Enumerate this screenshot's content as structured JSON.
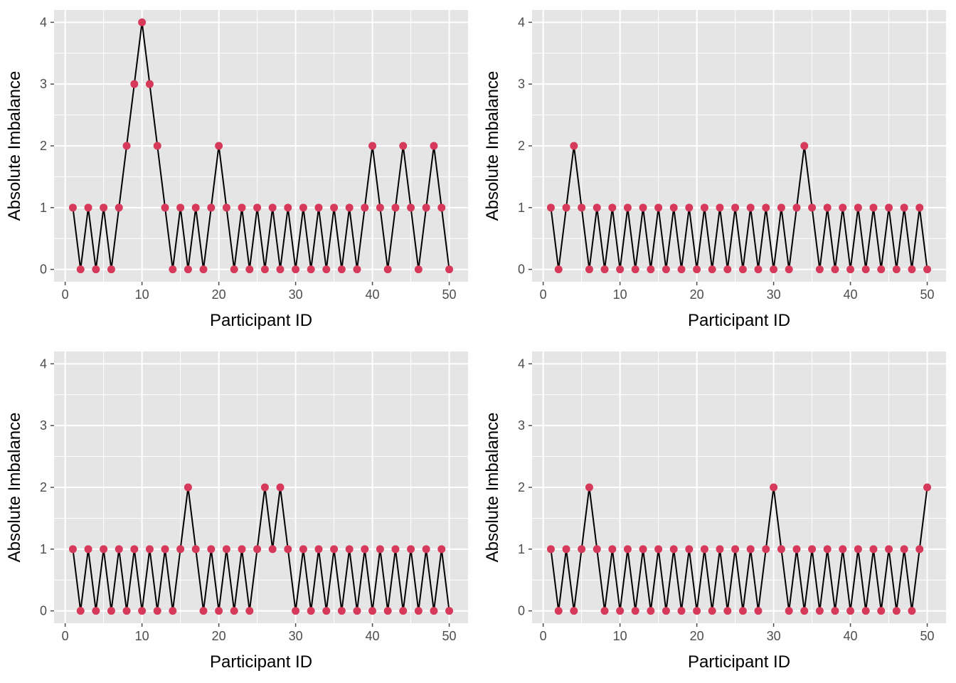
{
  "colors": {
    "panel_background": "#e5e5e5",
    "gridline": "#ffffff",
    "line": "#000000",
    "point": "#d6395a",
    "tick": "#4d4d4d"
  },
  "chart_data": [
    {
      "type": "line",
      "xlabel": "Participant ID",
      "ylabel": "Absolute Imbalance",
      "xlim": [
        1,
        50
      ],
      "ylim": [
        0,
        4
      ],
      "xticks": [
        0,
        10,
        20,
        30,
        40,
        50
      ],
      "yticks": [
        0,
        1,
        2,
        3,
        4
      ],
      "grid": true,
      "x": [
        1,
        2,
        3,
        4,
        5,
        6,
        7,
        8,
        9,
        10,
        11,
        12,
        13,
        14,
        15,
        16,
        17,
        18,
        19,
        20,
        21,
        22,
        23,
        24,
        25,
        26,
        27,
        28,
        29,
        30,
        31,
        32,
        33,
        34,
        35,
        36,
        37,
        38,
        39,
        40,
        41,
        42,
        43,
        44,
        45,
        46,
        47,
        48,
        49,
        50
      ],
      "y": [
        1,
        0,
        1,
        0,
        1,
        0,
        1,
        2,
        3,
        4,
        3,
        2,
        1,
        0,
        1,
        0,
        1,
        0,
        1,
        2,
        1,
        0,
        1,
        0,
        1,
        0,
        1,
        0,
        1,
        0,
        1,
        0,
        1,
        0,
        1,
        0,
        1,
        0,
        1,
        2,
        1,
        0,
        1,
        2,
        1,
        0,
        1,
        2,
        1,
        0
      ]
    },
    {
      "type": "line",
      "xlabel": "Participant ID",
      "ylabel": "Absolute Imbalance",
      "xlim": [
        1,
        50
      ],
      "ylim": [
        0,
        4
      ],
      "xticks": [
        0,
        10,
        20,
        30,
        40,
        50
      ],
      "yticks": [
        0,
        1,
        2,
        3,
        4
      ],
      "grid": true,
      "x": [
        1,
        2,
        3,
        4,
        5,
        6,
        7,
        8,
        9,
        10,
        11,
        12,
        13,
        14,
        15,
        16,
        17,
        18,
        19,
        20,
        21,
        22,
        23,
        24,
        25,
        26,
        27,
        28,
        29,
        30,
        31,
        32,
        33,
        34,
        35,
        36,
        37,
        38,
        39,
        40,
        41,
        42,
        43,
        44,
        45,
        46,
        47,
        48,
        49,
        50
      ],
      "y": [
        1,
        0,
        1,
        2,
        1,
        0,
        1,
        0,
        1,
        0,
        1,
        0,
        1,
        0,
        1,
        0,
        1,
        0,
        1,
        0,
        1,
        0,
        1,
        0,
        1,
        0,
        1,
        0,
        1,
        0,
        1,
        0,
        1,
        2,
        1,
        0,
        1,
        0,
        1,
        0,
        1,
        0,
        1,
        0,
        1,
        0,
        1,
        0,
        1,
        0
      ]
    },
    {
      "type": "line",
      "xlabel": "Participant ID",
      "ylabel": "Absolute Imbalance",
      "xlim": [
        1,
        50
      ],
      "ylim": [
        0,
        4
      ],
      "xticks": [
        0,
        10,
        20,
        30,
        40,
        50
      ],
      "yticks": [
        0,
        1,
        2,
        3,
        4
      ],
      "grid": true,
      "x": [
        1,
        2,
        3,
        4,
        5,
        6,
        7,
        8,
        9,
        10,
        11,
        12,
        13,
        14,
        15,
        16,
        17,
        18,
        19,
        20,
        21,
        22,
        23,
        24,
        25,
        26,
        27,
        28,
        29,
        30,
        31,
        32,
        33,
        34,
        35,
        36,
        37,
        38,
        39,
        40,
        41,
        42,
        43,
        44,
        45,
        46,
        47,
        48,
        49,
        50
      ],
      "y": [
        1,
        0,
        1,
        0,
        1,
        0,
        1,
        0,
        1,
        0,
        1,
        0,
        1,
        0,
        1,
        2,
        1,
        0,
        1,
        0,
        1,
        0,
        1,
        0,
        1,
        2,
        1,
        2,
        1,
        0,
        1,
        0,
        1,
        0,
        1,
        0,
        1,
        0,
        1,
        0,
        1,
        0,
        1,
        0,
        1,
        0,
        1,
        0,
        1,
        0
      ]
    },
    {
      "type": "line",
      "xlabel": "Participant ID",
      "ylabel": "Absolute Imbalance",
      "xlim": [
        1,
        50
      ],
      "ylim": [
        0,
        4
      ],
      "xticks": [
        0,
        10,
        20,
        30,
        40,
        50
      ],
      "yticks": [
        0,
        1,
        2,
        3,
        4
      ],
      "grid": true,
      "x": [
        1,
        2,
        3,
        4,
        5,
        6,
        7,
        8,
        9,
        10,
        11,
        12,
        13,
        14,
        15,
        16,
        17,
        18,
        19,
        20,
        21,
        22,
        23,
        24,
        25,
        26,
        27,
        28,
        29,
        30,
        31,
        32,
        33,
        34,
        35,
        36,
        37,
        38,
        39,
        40,
        41,
        42,
        43,
        44,
        45,
        46,
        47,
        48,
        49,
        50
      ],
      "y": [
        1,
        0,
        1,
        0,
        1,
        2,
        1,
        0,
        1,
        0,
        1,
        0,
        1,
        0,
        1,
        0,
        1,
        0,
        1,
        0,
        1,
        0,
        1,
        0,
        1,
        0,
        1,
        0,
        1,
        2,
        1,
        0,
        1,
        0,
        1,
        0,
        1,
        0,
        1,
        0,
        1,
        0,
        1,
        0,
        1,
        0,
        1,
        0,
        1,
        2
      ]
    }
  ]
}
